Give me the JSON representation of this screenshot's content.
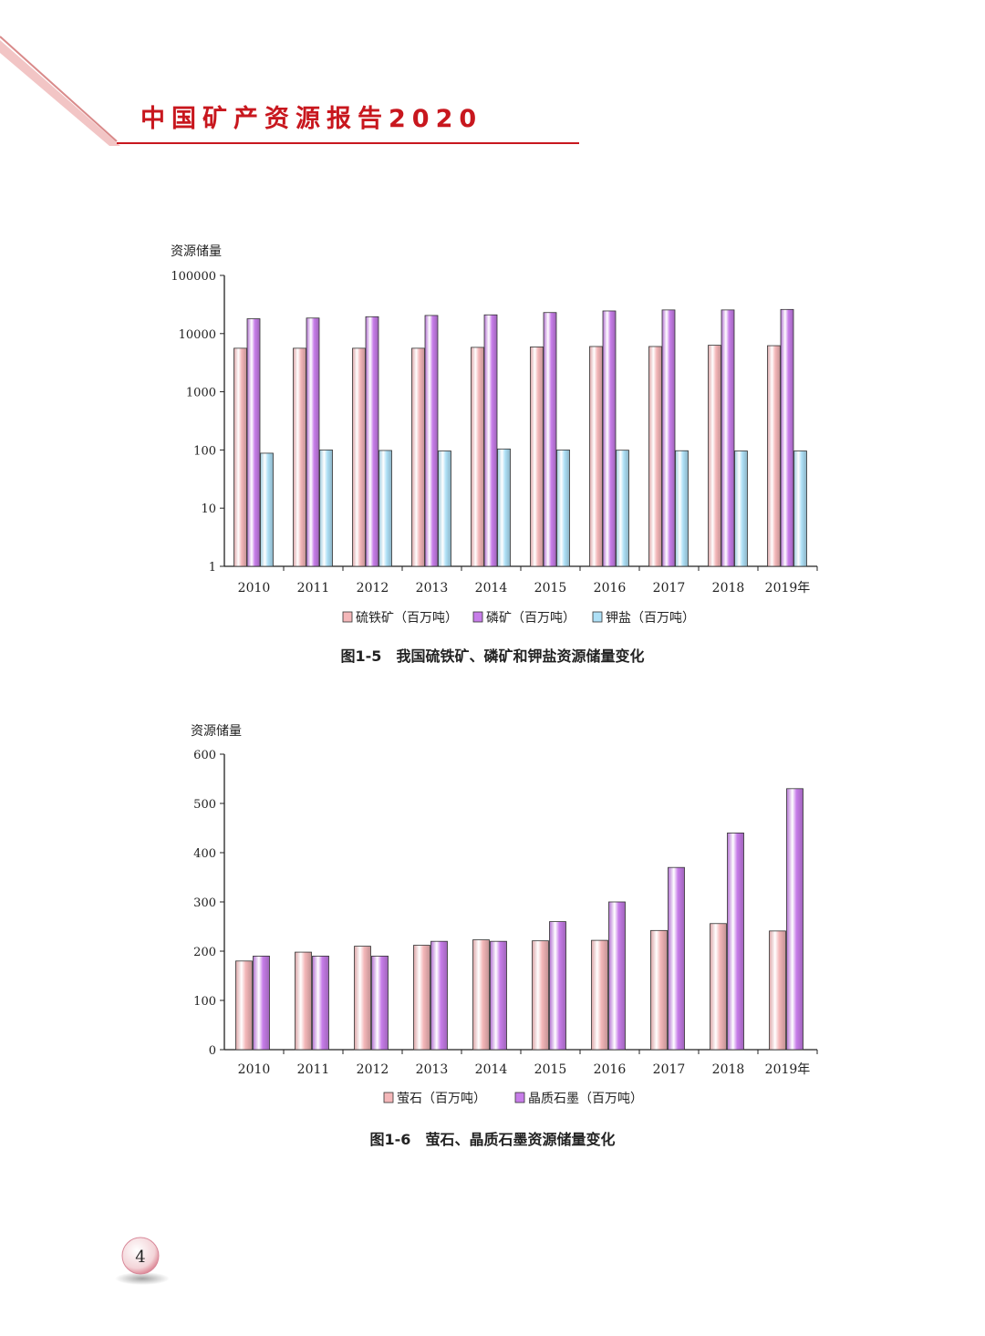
{
  "header": {
    "title": "中国矿产资源报告2020"
  },
  "page_number": "4",
  "colors": {
    "series_pink": "#f4b7b9",
    "series_purple": "#c77de9",
    "series_blue": "#aee0f6",
    "accent_red": "#c8171e"
  },
  "chart_data": [
    {
      "type": "bar",
      "ylabel": "资源储量",
      "yscale": "log",
      "ylim": [
        1,
        100000
      ],
      "yticks": [
        "1",
        "10",
        "100",
        "1000",
        "10000",
        "100000"
      ],
      "categories": [
        "2010",
        "2011",
        "2012",
        "2013",
        "2014",
        "2015",
        "2016",
        "2017",
        "2018",
        "2019年"
      ],
      "series": [
        {
          "name": "硫铁矿（百万吨）",
          "color": "#f4b7b9",
          "values": [
            5600,
            5600,
            5600,
            5600,
            5800,
            5900,
            6000,
            6000,
            6300,
            6200
          ]
        },
        {
          "name": "磷矿（百万吨）",
          "color": "#c77de9",
          "values": [
            18000,
            18500,
            19500,
            20500,
            21000,
            23000,
            24500,
            25500,
            25500,
            26000
          ]
        },
        {
          "name": "钾盐（百万吨）",
          "color": "#aee0f6",
          "values": [
            88,
            100,
            98,
            96,
            104,
            100,
            99,
            97,
            96,
            96
          ]
        }
      ],
      "caption": "图1-5　我国硫铁矿、磷矿和钾盐资源储量变化"
    },
    {
      "type": "bar",
      "ylabel": "资源储量",
      "ylim": [
        0,
        600
      ],
      "yticks": [
        "0",
        "100",
        "200",
        "300",
        "400",
        "500",
        "600"
      ],
      "categories": [
        "2010",
        "2011",
        "2012",
        "2013",
        "2014",
        "2015",
        "2016",
        "2017",
        "2018",
        "2019年"
      ],
      "series": [
        {
          "name": "萤石（百万吨）",
          "color": "#f4b7b9",
          "values": [
            180,
            198,
            210,
            212,
            223,
            221,
            222,
            242,
            256,
            241
          ]
        },
        {
          "name": "晶质石墨（百万吨）",
          "color": "#c77de9",
          "values": [
            190,
            190,
            190,
            220,
            220,
            260,
            300,
            370,
            440,
            530
          ]
        }
      ],
      "caption": "图1-6　萤石、晶质石墨资源储量变化"
    }
  ]
}
